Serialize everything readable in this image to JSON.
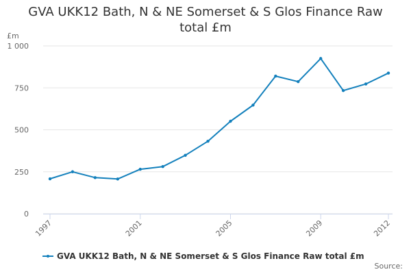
{
  "colors": {
    "series": "#1380bc",
    "grid": "#e6e6e6",
    "axis": "#ccd6eb",
    "text": "#333333",
    "label": "#666666"
  },
  "credits": "Source:",
  "chart_data": {
    "type": "line",
    "title_lines": [
      "GVA UKK12 Bath, N & NE Somerset & S Glos Finance Raw",
      "total £m"
    ],
    "ylabel": "£m",
    "xlabel": "",
    "ylim": [
      0,
      1000
    ],
    "yticks": [
      0,
      250,
      500,
      750,
      1000
    ],
    "ytick_labels": [
      "0",
      "250",
      "500",
      "750",
      "1 000"
    ],
    "xlim": [
      1997,
      2012
    ],
    "xtick_labels": [
      "1997",
      "2001",
      "2005",
      "2009",
      "2012"
    ],
    "grid": true,
    "legend_position": "bottom-left",
    "series": [
      {
        "name": "GVA UKK12 Bath, N & NE Somerset & S Glos Finance Raw total £m",
        "x": [
          1997,
          1998,
          1999,
          2000,
          2001,
          2002,
          2003,
          2004,
          2005,
          2006,
          2007,
          2008,
          2009,
          2010,
          2011,
          2012
        ],
        "y": [
          208,
          250,
          215,
          207,
          265,
          281,
          348,
          432,
          551,
          647,
          820,
          787,
          925,
          734,
          773,
          838
        ]
      }
    ]
  }
}
